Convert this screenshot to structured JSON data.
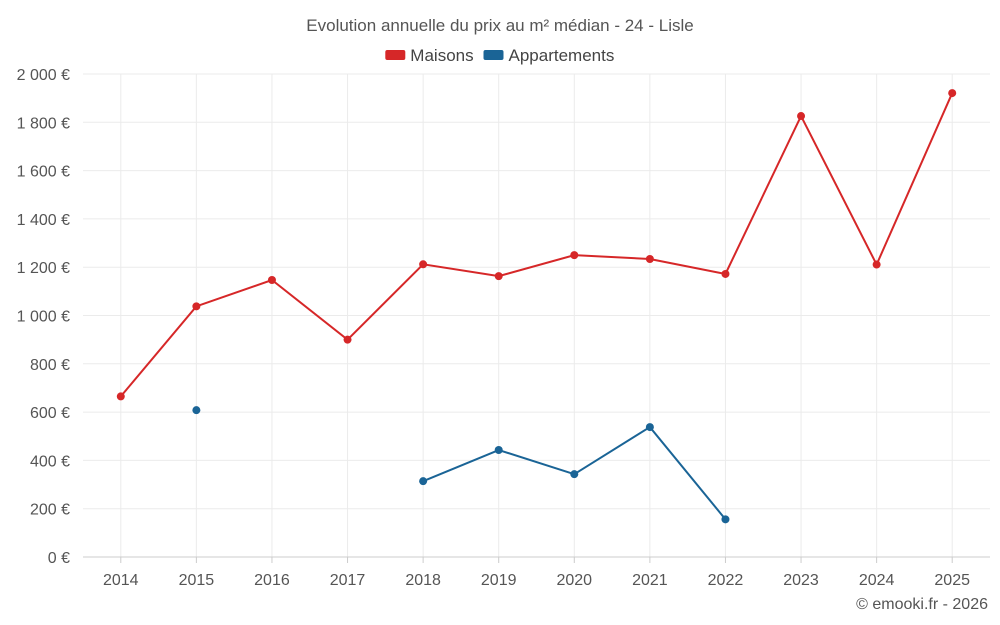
{
  "chart_data": {
    "type": "line",
    "title": "Evolution annuelle du prix au m² médian - 24 - Lisle",
    "categories": [
      "2014",
      "2015",
      "2016",
      "2017",
      "2018",
      "2019",
      "2020",
      "2021",
      "2022",
      "2023",
      "2024",
      "2025"
    ],
    "ylim": [
      0,
      2000
    ],
    "yticks": [
      0,
      200,
      400,
      600,
      800,
      1000,
      1200,
      1400,
      1600,
      1800,
      2000
    ],
    "ytick_labels": [
      "0 €",
      "200 €",
      "400 €",
      "600 €",
      "800 €",
      "1 000 €",
      "1 200 €",
      "1 400 €",
      "1 600 €",
      "1 800 €",
      "2 000 €"
    ],
    "grid": true,
    "legend_position": "top-center",
    "series": [
      {
        "name": "Maisons",
        "color": "#d62728",
        "values": [
          665,
          1038,
          1147,
          900,
          1212,
          1163,
          1250,
          1234,
          1172,
          1826,
          1211,
          1921
        ]
      },
      {
        "name": "Appartements",
        "color": "#1a6496",
        "values": [
          null,
          608,
          null,
          null,
          314,
          443,
          343,
          538,
          156,
          null,
          null,
          null
        ]
      }
    ],
    "credit": "© emooki.fr - 2026"
  }
}
